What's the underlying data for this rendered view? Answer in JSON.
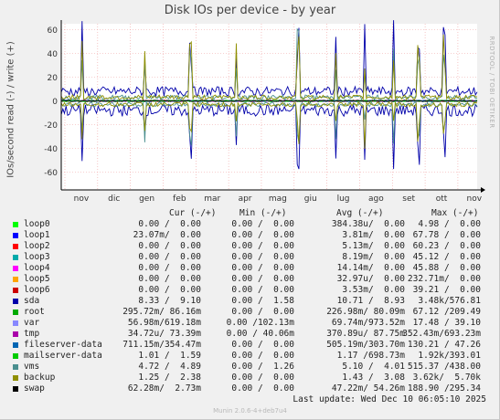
{
  "chart_data": {
    "type": "line",
    "title": "Disk IOs per device - by year",
    "ylabel": "IOs/second read (-) / write (+)",
    "ylim": [
      -75,
      65
    ],
    "y_ticks": [
      "60",
      "40",
      "20",
      "0",
      "-20",
      "-40",
      "-60"
    ],
    "y_tick_values": [
      60,
      40,
      20,
      0,
      -20,
      -40,
      -60
    ],
    "x_ticks": [
      "nov",
      "dic",
      "gen",
      "feb",
      "mar",
      "apr",
      "mag",
      "giu",
      "lug",
      "ago",
      "set",
      "ott",
      "nov"
    ],
    "grid": true,
    "series": [
      {
        "name": "loop0",
        "color": "#00cc00",
        "write_level": 0.0,
        "read_level": 0.0
      },
      {
        "name": "loop1",
        "color": "#0066b3",
        "write_level": 3.81,
        "read_level": 0.0
      },
      {
        "name": "loop2",
        "color": "#ff8000",
        "write_level": 5.13,
        "read_level": 0.0
      },
      {
        "name": "loop3",
        "color": "#ffcc00",
        "write_level": 8.19,
        "read_level": 0.0
      },
      {
        "name": "loop4",
        "color": "#330099",
        "write_level": 14.14,
        "read_level": 0.0
      },
      {
        "name": "loop5",
        "color": "#990099",
        "write_level": 32.97,
        "read_level": 0.0
      },
      {
        "name": "loop6",
        "color": "#ccff00",
        "write_level": 3.53,
        "read_level": 0.0
      },
      {
        "name": "sda",
        "color": "#ff0000",
        "write_level": 10.71,
        "read_level": 8.93
      },
      {
        "name": "root",
        "color": "#808080",
        "write_level": 226.98,
        "read_level": 80.09
      },
      {
        "name": "var",
        "color": "#008f00",
        "write_level": 69.74,
        "read_level": 973.52
      },
      {
        "name": "tmp",
        "color": "#00487d",
        "write_level": 370.89,
        "read_level": 87.75
      },
      {
        "name": "fileserver-data",
        "color": "#b35a00",
        "write_level": 505.19,
        "read_level": 303.7
      },
      {
        "name": "mailserver-data",
        "color": "#b38f00",
        "write_level": 1.17,
        "read_level": 698.73
      },
      {
        "name": "vms",
        "color": "#6b006b",
        "write_level": 5.1,
        "read_level": 4.01
      },
      {
        "name": "backup",
        "color": "#8fb300",
        "write_level": 1.43,
        "read_level": 3.08
      },
      {
        "name": "swap",
        "color": "#b30000",
        "write_level": 47.22,
        "read_level": 54.26
      }
    ]
  },
  "legend": {
    "headers": {
      "cur": "Cur (-/+)",
      "min": "Min (-/+)",
      "avg": "Avg (-/+)",
      "max": "Max (-/+)"
    },
    "rows": [
      {
        "name": "loop0",
        "color": "#00ff00",
        "cur": "0.00 /  0.00",
        "min": "0.00 /  0.00",
        "avg": "384.38u/  0.00",
        "max": "4.98 /  0.00"
      },
      {
        "name": "loop1",
        "color": "#0000ff",
        "cur": "23.07m/  0.00",
        "min": "0.00 /  0.00",
        "avg": "3.81m/  0.00",
        "max": "67.78 /  0.00"
      },
      {
        "name": "loop2",
        "color": "#ff0000",
        "cur": "0.00 /  0.00",
        "min": "0.00 /  0.00",
        "avg": "5.13m/  0.00",
        "max": "60.23 /  0.00"
      },
      {
        "name": "loop3",
        "color": "#00aaaa",
        "cur": "0.00 /  0.00",
        "min": "0.00 /  0.00",
        "avg": "8.19m/  0.00",
        "max": "45.12 /  0.00"
      },
      {
        "name": "loop4",
        "color": "#ff00ff",
        "cur": "0.00 /  0.00",
        "min": "0.00 /  0.00",
        "avg": "14.14m/  0.00",
        "max": "45.88 /  0.00"
      },
      {
        "name": "loop5",
        "color": "#ffa500",
        "cur": "0.00 /  0.00",
        "min": "0.00 /  0.00",
        "avg": "32.97u/  0.00",
        "max": "232.71m/  0.00"
      },
      {
        "name": "loop6",
        "color": "#cc0000",
        "cur": "0.00 /  0.00",
        "min": "0.00 /  0.00",
        "avg": "3.53m/  0.00",
        "max": "39.21 /  0.00"
      },
      {
        "name": "sda",
        "color": "#0000aa",
        "cur": "8.33 /  9.10",
        "min": "0.00 /  1.58",
        "avg": "10.71 /  8.93",
        "max": "3.48k/576.81"
      },
      {
        "name": "root",
        "color": "#00aa00",
        "cur": "295.72m/ 86.16m",
        "min": "0.00 /  0.00",
        "avg": "226.98m/ 80.09m",
        "max": "67.12 /209.49"
      },
      {
        "name": "var",
        "color": "#8888ff",
        "cur": "56.98m/619.18m",
        "min": "0.00 /102.13m",
        "avg": "69.74m/973.52m",
        "max": "17.48 / 39.10"
      },
      {
        "name": "tmp",
        "color": "#aa00aa",
        "cur": "34.72u/ 73.39m",
        "min": "0.00 / 40.06m",
        "avg": "370.89u/ 87.75m",
        "max": "352.43m/693.23m"
      },
      {
        "name": "fileserver-data",
        "color": "#0066b3",
        "cur": "711.15m/354.47m",
        "min": "0.00 /  0.00",
        "avg": "505.19m/303.70m",
        "max": "130.21 / 47.26"
      },
      {
        "name": "mailserver-data",
        "color": "#00cc00",
        "cur": "1.01 /  1.59",
        "min": "0.00 /  0.00",
        "avg": "1.17 /698.73m",
        "max": "1.92k/393.01"
      },
      {
        "name": "vms",
        "color": "#4a8f8f",
        "cur": "4.72 /  4.89",
        "min": "0.00 /  1.26",
        "avg": "5.10 /  4.01",
        "max": "515.37 /438.00"
      },
      {
        "name": "backup",
        "color": "#8f8f00",
        "cur": "1.25 /  2.38",
        "min": "0.00 /  0.00",
        "avg": "1.43 /  3.08",
        "max": "3.62k/  5.70k"
      },
      {
        "name": "swap",
        "color": "#000000",
        "cur": "62.28m/  2.73m",
        "min": "0.00 /  0.00",
        "avg": "47.22m/ 54.26m",
        "max": "188.90 /295.34"
      }
    ]
  },
  "last_update": "Last update: Wed Dec 10 06:05:10 2025",
  "footer": "Munin 2.0.6-4+deb7u4",
  "watermark": "RRDTOOL / TOBI OETIKER"
}
